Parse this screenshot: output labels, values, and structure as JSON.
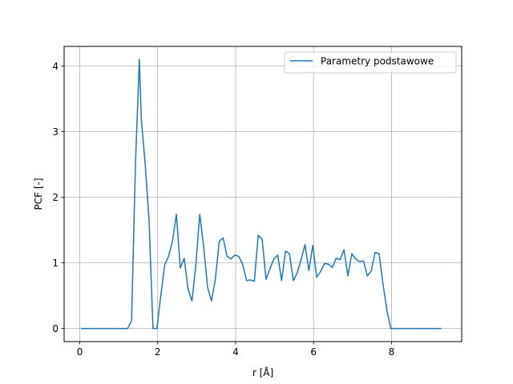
{
  "chart_data": {
    "type": "line",
    "title": "",
    "xlabel": "r [Å]",
    "ylabel": "PCF [-]",
    "xlim": [
      -0.4,
      9.8
    ],
    "ylim": [
      -0.2,
      4.3
    ],
    "xticks": [
      0,
      2,
      4,
      6,
      8
    ],
    "yticks": [
      0,
      1,
      2,
      3,
      4
    ],
    "grid": true,
    "legend_position": "top-right",
    "series": [
      {
        "name": "Parametry podstawowe",
        "color": "#1f77b4",
        "x": [
          0.03,
          0.13,
          0.23,
          0.33,
          0.43,
          0.53,
          0.63,
          0.73,
          0.83,
          0.93,
          1.03,
          1.13,
          1.23,
          1.33,
          1.43,
          1.53,
          1.58,
          1.68,
          1.78,
          1.83,
          1.88,
          1.98,
          2.08,
          2.18,
          2.28,
          2.38,
          2.48,
          2.58,
          2.68,
          2.78,
          2.88,
          2.98,
          3.08,
          3.18,
          3.28,
          3.38,
          3.48,
          3.58,
          3.68,
          3.78,
          3.88,
          3.98,
          4.08,
          4.18,
          4.28,
          4.38,
          4.48,
          4.58,
          4.68,
          4.78,
          4.88,
          4.98,
          5.08,
          5.18,
          5.28,
          5.38,
          5.48,
          5.58,
          5.68,
          5.78,
          5.88,
          5.98,
          6.08,
          6.18,
          6.28,
          6.38,
          6.48,
          6.58,
          6.68,
          6.78,
          6.88,
          6.98,
          7.08,
          7.18,
          7.28,
          7.38,
          7.48,
          7.58,
          7.68,
          7.78,
          7.88,
          7.98,
          8.08,
          8.18,
          8.28,
          8.38,
          8.48,
          8.58,
          8.68,
          8.78,
          8.88,
          8.98,
          9.08,
          9.18,
          9.28
        ],
        "y": [
          0,
          0,
          0,
          0,
          0,
          0,
          0,
          0,
          0,
          0,
          0,
          0,
          0,
          0.12,
          2.5,
          4.1,
          3.2,
          2.5,
          1.65,
          0.8,
          0,
          0,
          0.5,
          0.97,
          1.1,
          1.33,
          1.74,
          0.92,
          1.07,
          0.6,
          0.42,
          0.97,
          1.74,
          1.25,
          0.63,
          0.42,
          0.75,
          1.33,
          1.38,
          1.1,
          1.06,
          1.12,
          1.1,
          0.98,
          0.73,
          0.74,
          0.72,
          1.42,
          1.36,
          0.75,
          0.91,
          1.06,
          1.12,
          0.73,
          1.18,
          1.14,
          0.73,
          0.85,
          1.05,
          1.28,
          0.88,
          1.27,
          0.78,
          0.87,
          0.99,
          0.98,
          0.93,
          1.07,
          1.05,
          1.2,
          0.8,
          1.14,
          1.06,
          1.02,
          1.03,
          0.8,
          0.88,
          1.16,
          1.14,
          0.68,
          0.28,
          0,
          0,
          0,
          0,
          0,
          0,
          0,
          0,
          0,
          0,
          0,
          0,
          0,
          0
        ]
      }
    ]
  }
}
